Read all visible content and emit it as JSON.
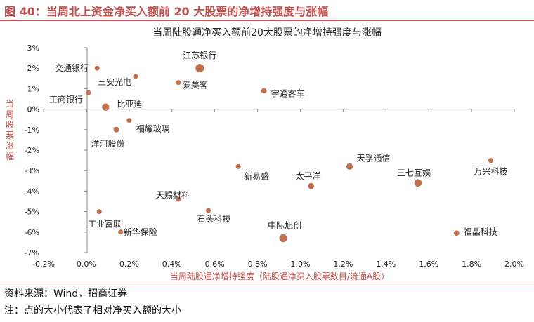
{
  "figure_title": "图 40：当周北上资金净买入额前 20 大股票的净增持强度与涨幅",
  "source_note": "资料来源：Wind，招商证券",
  "size_note": "注：点的大小代表了相对净买入额的大小",
  "colors": {
    "accent": "#c0504d",
    "dot": "#c0704a"
  },
  "chart_data": {
    "type": "scatter",
    "title": "当周陆股通净买入额前20大股票的净增持强度与涨幅",
    "xlabel": "当周陆股通净增持强度（陆股通净买入股票数目/流通A股）",
    "ylabel": "当周股票涨幅",
    "xlim": [
      -0.2,
      2.0
    ],
    "ylim": [
      -7,
      3
    ],
    "x_ticks": [
      "-0.2%",
      "0.0%",
      "0.2%",
      "0.4%",
      "0.6%",
      "0.8%",
      "1.0%",
      "1.2%",
      "1.4%",
      "1.6%",
      "1.8%",
      "2.0%"
    ],
    "y_ticks": [
      "3%",
      "2%",
      "1%",
      "0%",
      "-1%",
      "-2%",
      "-3%",
      "-4%",
      "-5%",
      "-6%",
      "-7%"
    ],
    "grid": false,
    "points": [
      {
        "name": "交通银行",
        "x": 0.05,
        "y": 2.0,
        "size": 1
      },
      {
        "name": "江苏银行",
        "x": 0.53,
        "y": 2.0,
        "size": 3
      },
      {
        "name": "三安光电",
        "x": 0.23,
        "y": 1.6,
        "size": 1
      },
      {
        "name": "爱美客",
        "x": 0.43,
        "y": 1.3,
        "size": 1
      },
      {
        "name": "宇通客车",
        "x": 0.83,
        "y": 0.9,
        "size": 1.2
      },
      {
        "name": "工商银行",
        "x": 0.01,
        "y": 0.8,
        "size": 1
      },
      {
        "name": "比亚迪",
        "x": 0.09,
        "y": 0.1,
        "size": 2.2
      },
      {
        "name": "福耀玻璃",
        "x": 0.2,
        "y": -0.55,
        "size": 1
      },
      {
        "name": "洋河股份",
        "x": 0.14,
        "y": -1.0,
        "size": 1.3
      },
      {
        "name": "新易盛",
        "x": 0.71,
        "y": -2.8,
        "size": 1
      },
      {
        "name": "天孚通信",
        "x": 1.23,
        "y": -2.8,
        "size": 1.7
      },
      {
        "name": "万兴科技",
        "x": 1.89,
        "y": -2.5,
        "size": 1
      },
      {
        "name": "太平洋",
        "x": 1.05,
        "y": -3.75,
        "size": 1.5
      },
      {
        "name": "三七互娱",
        "x": 1.55,
        "y": -3.6,
        "size": 2.3
      },
      {
        "name": "天赐材料",
        "x": 0.43,
        "y": -4.4,
        "size": 1
      },
      {
        "name": "石头科技",
        "x": 0.57,
        "y": -4.95,
        "size": 1
      },
      {
        "name": "工业富联",
        "x": 0.06,
        "y": -5.0,
        "size": 1
      },
      {
        "name": "新华保险",
        "x": 0.16,
        "y": -6.0,
        "size": 1
      },
      {
        "name": "中际旭创",
        "x": 0.92,
        "y": -6.3,
        "size": 2.6
      },
      {
        "name": "福晶科技",
        "x": 1.73,
        "y": -6.05,
        "size": 1.2
      }
    ]
  }
}
